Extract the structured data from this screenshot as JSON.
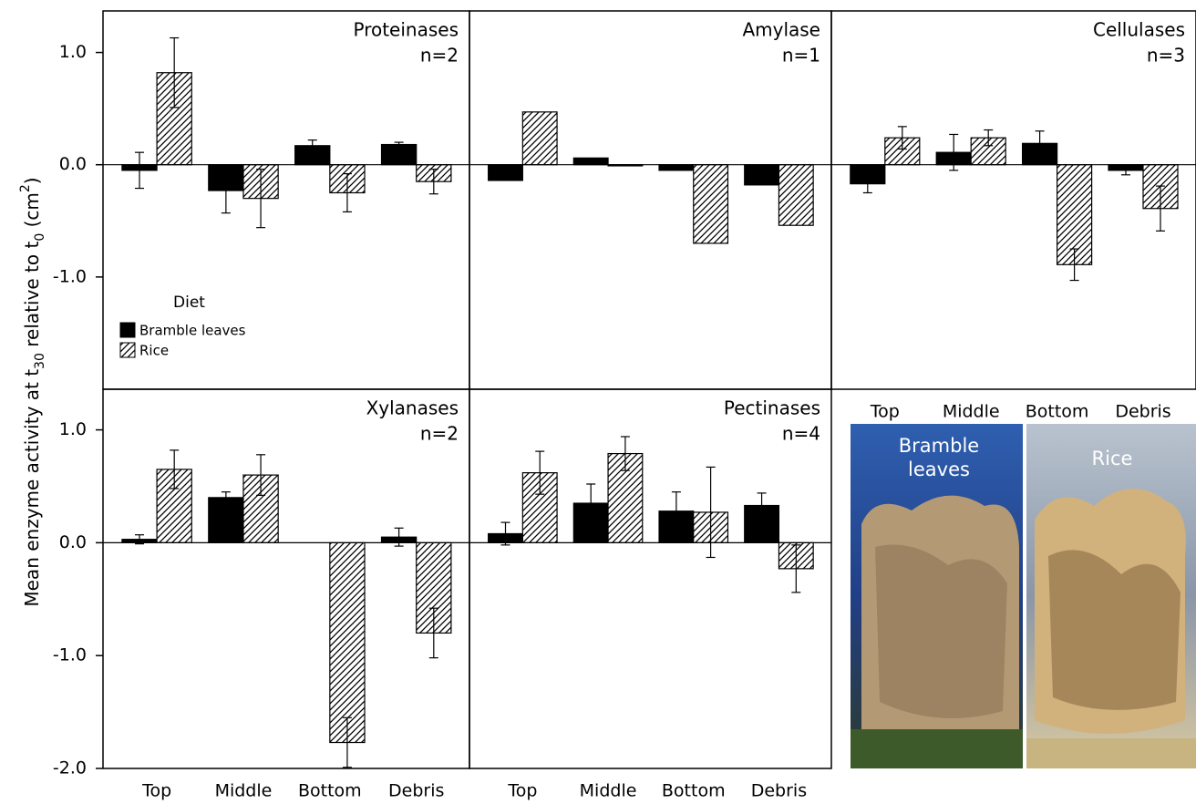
{
  "chart_data": [
    {
      "type": "bar",
      "title": "Proteinases",
      "subtitle": "n=2",
      "ylabel": [
        "Mean enzyme activity at t",
        "30",
        " relative to t",
        "0",
        " (cm",
        "2",
        ")"
      ],
      "ylim": [
        -2.0,
        1.37
      ],
      "yticks": [
        {
          "value": 1,
          "label": "1.0"
        },
        {
          "value": 0,
          "label": "0.0"
        },
        {
          "value": -1,
          "label": "-1.0"
        }
      ],
      "legend": "lower-left",
      "legend_title": "Diet",
      "series": [
        {
          "name": "Bramble leaves",
          "color": "#000000",
          "values": [
            -0.05,
            -0.23,
            0.17,
            0.18
          ],
          "errors": [
            0.16,
            0.2,
            0.05,
            0.02
          ]
        },
        {
          "name": "Rice",
          "color": "#000000",
          "hatch": true,
          "values": [
            0.82,
            -0.3,
            -0.25,
            -0.15
          ],
          "errors": [
            0.31,
            0.26,
            0.17,
            0.11
          ]
        }
      ]
    },
    {
      "type": "bar",
      "title": "Amylase",
      "subtitle": "n=1",
      "ylim": [
        -2.0,
        1.37
      ],
      "series": [
        {
          "color": "#000000",
          "values": [
            -0.14,
            0.06,
            -0.05,
            -0.18
          ]
        },
        {
          "color": "#000000",
          "hatch": true,
          "values": [
            0.47,
            -0.01,
            -0.7,
            -0.54
          ]
        }
      ]
    },
    {
      "type": "bar",
      "title": "Cellulases",
      "subtitle": "n=3",
      "ylim": [
        -2.0,
        1.37
      ],
      "categories": [
        "Top",
        "Middle",
        "Bottom",
        "Debris"
      ],
      "series": [
        {
          "color": "#000000",
          "values": [
            -0.17,
            0.11,
            0.19,
            -0.05
          ],
          "errors": [
            0.08,
            0.16,
            0.11,
            0.04
          ]
        },
        {
          "color": "#000000",
          "hatch": true,
          "values": [
            0.24,
            0.24,
            -0.89,
            -0.39
          ],
          "errors": [
            0.1,
            0.07,
            0.14,
            0.2
          ]
        }
      ]
    },
    {
      "type": "bar",
      "title": "Xylanases",
      "subtitle": "n=2",
      "ylim": [
        -2.0,
        1.36
      ],
      "yticks": [
        {
          "value": 1,
          "label": "1.0"
        },
        {
          "value": 0,
          "label": "0.0"
        },
        {
          "value": -1,
          "label": "-1.0"
        },
        {
          "value": -2,
          "label": "-2.0"
        }
      ],
      "categories": [
        "Top",
        "Middle",
        "Bottom",
        "Debris"
      ],
      "series": [
        {
          "color": "#000000",
          "values": [
            0.03,
            0.4,
            0,
            0.05
          ],
          "errors": [
            0.04,
            0.05,
            null,
            0.08
          ]
        },
        {
          "color": "#000000",
          "hatch": true,
          "values": [
            0.65,
            0.6,
            -1.77,
            -0.8
          ],
          "errors": [
            0.17,
            0.18,
            0.22,
            0.22
          ]
        }
      ]
    },
    {
      "type": "bar",
      "title": "Pectinases",
      "subtitle": "n=4",
      "ylim": [
        -2.0,
        1.36
      ],
      "categories": [
        "Top",
        "Middle",
        "Bottom",
        "Debris"
      ],
      "series": [
        {
          "color": "#000000",
          "values": [
            0.08,
            0.35,
            0.28,
            0.33
          ],
          "errors": [
            0.1,
            0.17,
            0.17,
            0.11
          ]
        },
        {
          "color": "#000000",
          "hatch": true,
          "values": [
            0.62,
            0.79,
            0.27,
            -0.23
          ],
          "errors": [
            0.19,
            0.15,
            0.4,
            0.21
          ]
        }
      ]
    }
  ],
  "photo": {
    "labels": [
      "Bramble leaves",
      "Rice"
    ]
  }
}
